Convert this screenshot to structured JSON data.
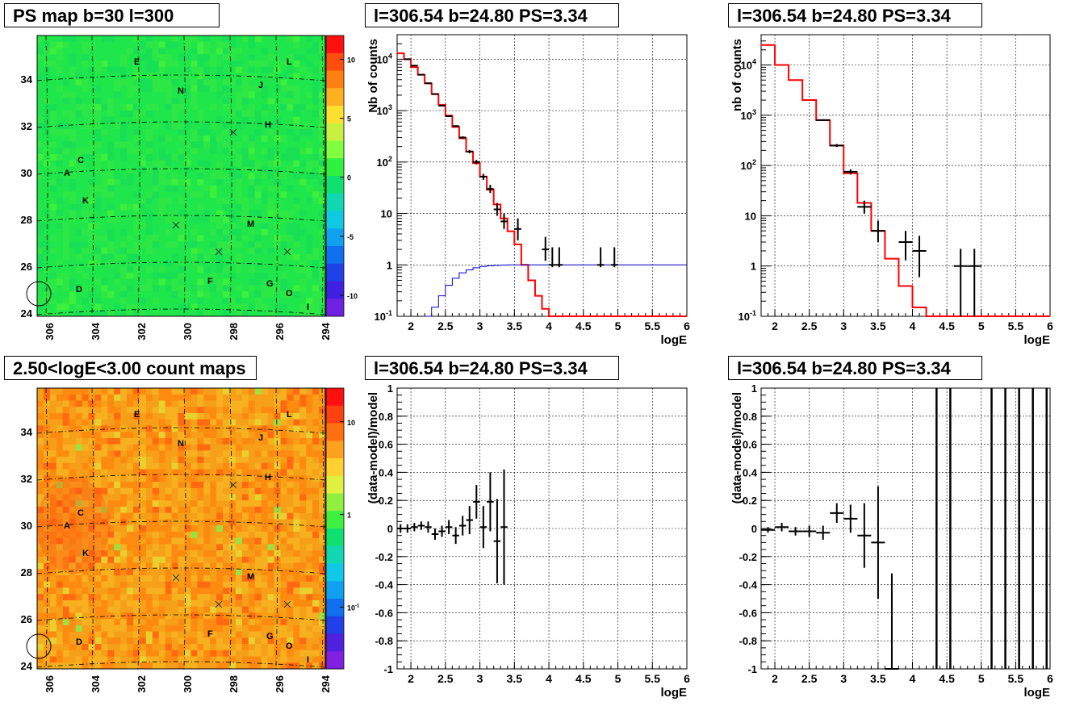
{
  "panels": {
    "map1_title": "PS map b=30 l=300",
    "map2_title": "2.50<logE<3.00 count maps",
    "spec1_title": "l=306.54 b=24.80 PS=3.34",
    "spec2_title": "l=306.54 b=24.80 PS=3.34",
    "res1_title": "l=306.54 b=24.80 PS=3.34",
    "res2_title": "l=306.54 b=24.80 PS=3.34"
  },
  "map_axes": {
    "x_ticks": [
      "306",
      "304",
      "302",
      "300",
      "298",
      "296",
      "294"
    ],
    "y_ticks": [
      "24",
      "26",
      "28",
      "30",
      "32",
      "34"
    ],
    "sources": [
      "A",
      "C",
      "D",
      "E",
      "F",
      "G",
      "H",
      "J",
      "K",
      "L",
      "M",
      "N",
      "O",
      "I"
    ]
  },
  "colorbars": {
    "ps_ticks": [
      "10",
      "5",
      "0",
      "-5",
      "-10"
    ],
    "count_ticks": [
      "10",
      "1",
      "10",
      "-1"
    ]
  },
  "colors": {
    "ps_map_bg": "#1ee64b",
    "count_map_bg": "#f5a018",
    "model_line": "#ff0000",
    "flat_model_line": "#0000c8",
    "data": "#000000"
  },
  "chart_data": [
    {
      "type": "step-histogram",
      "title": "l=306.54 b=24.80 PS=3.34",
      "xlabel": "logE",
      "ylabel": "Nb of counts",
      "xlim": [
        1.8,
        6
      ],
      "ylim": [
        0.1,
        30000
      ],
      "yscale": "log",
      "x_ticks": [
        "2",
        "2.5",
        "3",
        "3.5",
        "4",
        "4.5",
        "5",
        "5.5",
        "6"
      ],
      "y_ticks": [
        "10^{-1}",
        "1",
        "10",
        "10^{2}",
        "10^{3}",
        "10^{4}"
      ],
      "bin_width": 0.1,
      "series": [
        {
          "name": "",
          "role": "model",
          "x": [
            1.8,
            1.9,
            2.0,
            2.1,
            2.2,
            2.3,
            2.4,
            2.5,
            2.6,
            2.7,
            2.8,
            2.9,
            3.0,
            3.1,
            3.2,
            3.3,
            3.4,
            3.5,
            3.6,
            3.7,
            3.8,
            3.9,
            4.0,
            4.1,
            4.2
          ],
          "values": [
            13000,
            10000,
            7000,
            5000,
            3400,
            2100,
            1300,
            800,
            480,
            290,
            160,
            95,
            52,
            29,
            15,
            8,
            4.5,
            2.5,
            1.0,
            0.5,
            0.25,
            0.14,
            0.1,
            0.1,
            0.1
          ]
        },
        {
          "name": "",
          "role": "flat",
          "x": [
            2.2,
            2.3,
            2.4,
            2.5,
            2.6,
            2.7,
            2.8,
            2.9,
            3.0,
            3.1,
            3.2,
            3.3,
            3.4,
            3.5,
            3.6,
            6.0
          ],
          "values": [
            0.1,
            0.15,
            0.25,
            0.4,
            0.55,
            0.7,
            0.8,
            0.88,
            0.93,
            0.96,
            0.98,
            0.99,
            1.0,
            1.0,
            1.0,
            1.0
          ]
        },
        {
          "name": "",
          "role": "data",
          "x": [
            1.95,
            2.05,
            2.15,
            2.25,
            2.35,
            2.45,
            2.55,
            2.65,
            2.75,
            2.85,
            2.95,
            3.05,
            3.15,
            3.25,
            3.35,
            3.55,
            3.95,
            4.05,
            4.15,
            4.75,
            4.95
          ],
          "values": [
            10000,
            7500,
            5000,
            3400,
            2100,
            1250,
            780,
            500,
            300,
            160,
            100,
            52,
            30,
            12,
            7,
            5,
            2,
            1,
            1,
            1,
            1
          ],
          "err_low": [
            9900,
            7400,
            4930,
            3340,
            2050,
            1210,
            750,
            480,
            283,
            148,
            90,
            45,
            25,
            9,
            5,
            3,
            1.2,
            0.9,
            0.9,
            0.9,
            0.9
          ],
          "err_high": [
            10100,
            7600,
            5070,
            3460,
            2150,
            1290,
            810,
            520,
            317,
            172,
            110,
            59,
            36,
            16,
            10,
            8,
            3.5,
            2.2,
            2.2,
            2.2,
            2.2
          ]
        }
      ]
    },
    {
      "type": "step-histogram",
      "title": "l=306.54 b=24.80 PS=3.34",
      "xlabel": "logE",
      "ylabel": "nb of counts",
      "xlim": [
        1.8,
        6
      ],
      "ylim": [
        0.1,
        40000
      ],
      "yscale": "log",
      "x_ticks": [
        "2",
        "2.5",
        "3",
        "3.5",
        "4",
        "4.5",
        "5",
        "5.5",
        "6"
      ],
      "y_ticks": [
        "10^{-1}",
        "1",
        "10",
        "10^{2}",
        "10^{3}",
        "10^{4}"
      ],
      "bin_width": 0.2,
      "series": [
        {
          "name": "",
          "role": "model",
          "x": [
            1.8,
            2.0,
            2.2,
            2.4,
            2.6,
            2.8,
            3.0,
            3.2,
            3.4,
            3.6,
            3.8,
            4.0,
            4.2
          ],
          "values": [
            25000,
            10000,
            5000,
            2000,
            800,
            250,
            70,
            18,
            5,
            1.4,
            0.4,
            0.15,
            0.1
          ]
        },
        {
          "name": "",
          "role": "data",
          "x": [
            2.7,
            2.9,
            3.1,
            3.3,
            3.5,
            3.9,
            4.1,
            4.7,
            4.9
          ],
          "values": [
            800,
            250,
            75,
            15,
            5,
            3,
            2,
            1,
            1
          ],
          "err_low": [
            770,
            233,
            66,
            11,
            3,
            1.3,
            0.6,
            0.1,
            0.1
          ],
          "err_high": [
            830,
            267,
            84,
            20,
            8,
            5,
            4,
            2.2,
            2.2
          ]
        }
      ]
    },
    {
      "type": "scatter",
      "title": "l=306.54 b=24.80 PS=3.34",
      "xlabel": "logE",
      "ylabel": "(data-model)/model",
      "xlim": [
        1.8,
        6
      ],
      "ylim": [
        -1,
        1
      ],
      "x_ticks": [
        "2",
        "2.5",
        "3",
        "3.5",
        "4",
        "4.5",
        "5",
        "5.5",
        "6"
      ],
      "y_ticks": [
        "-1",
        "-0.8",
        "-0.6",
        "-0.4",
        "-0.2",
        "0",
        "0.2",
        "0.4",
        "0.6",
        "0.8",
        "1"
      ],
      "x": [
        1.85,
        1.95,
        2.05,
        2.15,
        2.25,
        2.35,
        2.45,
        2.55,
        2.65,
        2.75,
        2.85,
        2.95,
        3.05,
        3.15,
        3.25,
        3.35
      ],
      "y": [
        0,
        0,
        0.01,
        0.02,
        0.01,
        -0.04,
        -0.02,
        0.01,
        -0.05,
        0.02,
        0.06,
        0.19,
        0.01,
        0.19,
        -0.09,
        0.01
      ],
      "y_err": [
        0.03,
        0.03,
        0.03,
        0.03,
        0.04,
        0.04,
        0.04,
        0.05,
        0.06,
        0.07,
        0.1,
        0.12,
        0.15,
        0.21,
        0.3,
        0.41
      ],
      "x_err": 0.05
    },
    {
      "type": "scatter",
      "title": "l=306.54 b=24.80 PS=3.34",
      "xlabel": "logE",
      "ylabel": "(data-model)/model",
      "xlim": [
        1.8,
        6
      ],
      "ylim": [
        -1,
        1
      ],
      "x_ticks": [
        "2",
        "2.5",
        "3",
        "3.5",
        "4",
        "4.5",
        "5",
        "5.5",
        "6"
      ],
      "y_ticks": [
        "-1",
        "-0.8",
        "-0.6",
        "-0.4",
        "-0.2",
        "0",
        "0.2",
        "0.4",
        "0.6",
        "0.8",
        "1"
      ],
      "x": [
        1.9,
        2.1,
        2.3,
        2.5,
        2.7,
        2.9,
        3.1,
        3.3,
        3.5,
        3.7
      ],
      "y": [
        -0.01,
        0.01,
        -0.02,
        -0.02,
        -0.03,
        0.11,
        0.07,
        -0.05,
        -0.1,
        -1
      ],
      "y_err": [
        0.02,
        0.03,
        0.03,
        0.04,
        0.05,
        0.07,
        0.1,
        0.23,
        0.4,
        0.68
      ],
      "x_err": 0.1,
      "full_range_bars_x": [
        4.35,
        4.55,
        5.15,
        5.35,
        5.55,
        5.75,
        5.95
      ]
    }
  ]
}
